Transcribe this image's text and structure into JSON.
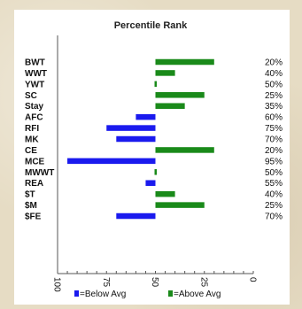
{
  "chart_data": {
    "type": "bar",
    "title": "Percentile Rank",
    "categories": [
      "BWT",
      "WWT",
      "YWT",
      "SC",
      "Stay",
      "AFC",
      "RFI",
      "MK",
      "CE",
      "MCE",
      "MWWT",
      "REA",
      "$T",
      "$M",
      "$FE"
    ],
    "percentile_labels": [
      "20%",
      "40%",
      "50%",
      "25%",
      "35%",
      "60%",
      "75%",
      "70%",
      "20%",
      "95%",
      "50%",
      "55%",
      "40%",
      "25%",
      "70%"
    ],
    "percentiles": [
      20,
      40,
      50,
      25,
      35,
      60,
      75,
      70,
      20,
      95,
      50,
      55,
      40,
      25,
      70
    ],
    "axis": {
      "reversed": true,
      "xlim": [
        0,
        100
      ],
      "midline": 50,
      "tick_labels": [
        "100",
        "75",
        "50",
        "25",
        "0"
      ]
    },
    "series": [
      {
        "name": "=Below Avg",
        "color": "#1a1aee"
      },
      {
        "name": "=Above Avg",
        "color": "#1a8a1a"
      }
    ],
    "legend": {
      "placement": "bottom"
    },
    "grid": false
  }
}
